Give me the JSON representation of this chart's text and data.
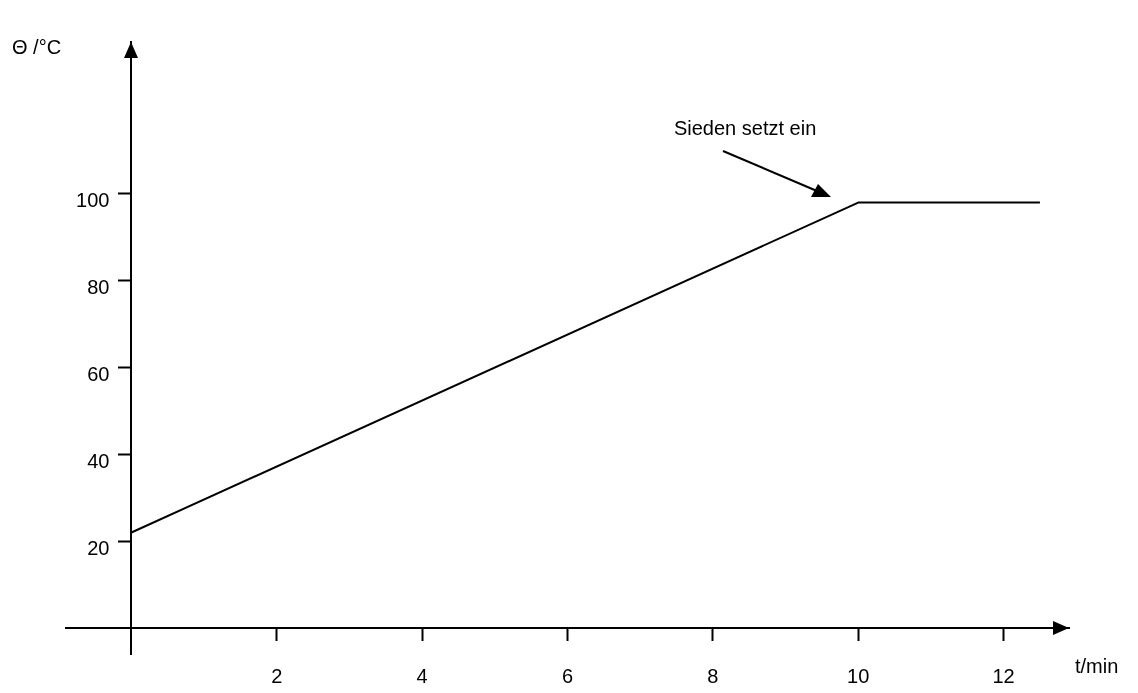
{
  "chart_data": {
    "type": "line",
    "xlabel": "t/min",
    "ylabel": "Θ /°C",
    "x": [
      0,
      10,
      12.5
    ],
    "series": [
      {
        "color": "#000000",
        "values": [
          22,
          98,
          98
        ]
      }
    ],
    "xlim": [
      -0.9,
      12.9
    ],
    "ylim": [
      -6,
      135
    ],
    "xticks": [
      2,
      4,
      6,
      8,
      10,
      12
    ],
    "yticks": [
      20,
      40,
      60,
      80,
      100
    ],
    "annotations": [
      "Sieden setzt ein"
    ],
    "marker": "none",
    "line_style": "solid",
    "legend": false
  }
}
